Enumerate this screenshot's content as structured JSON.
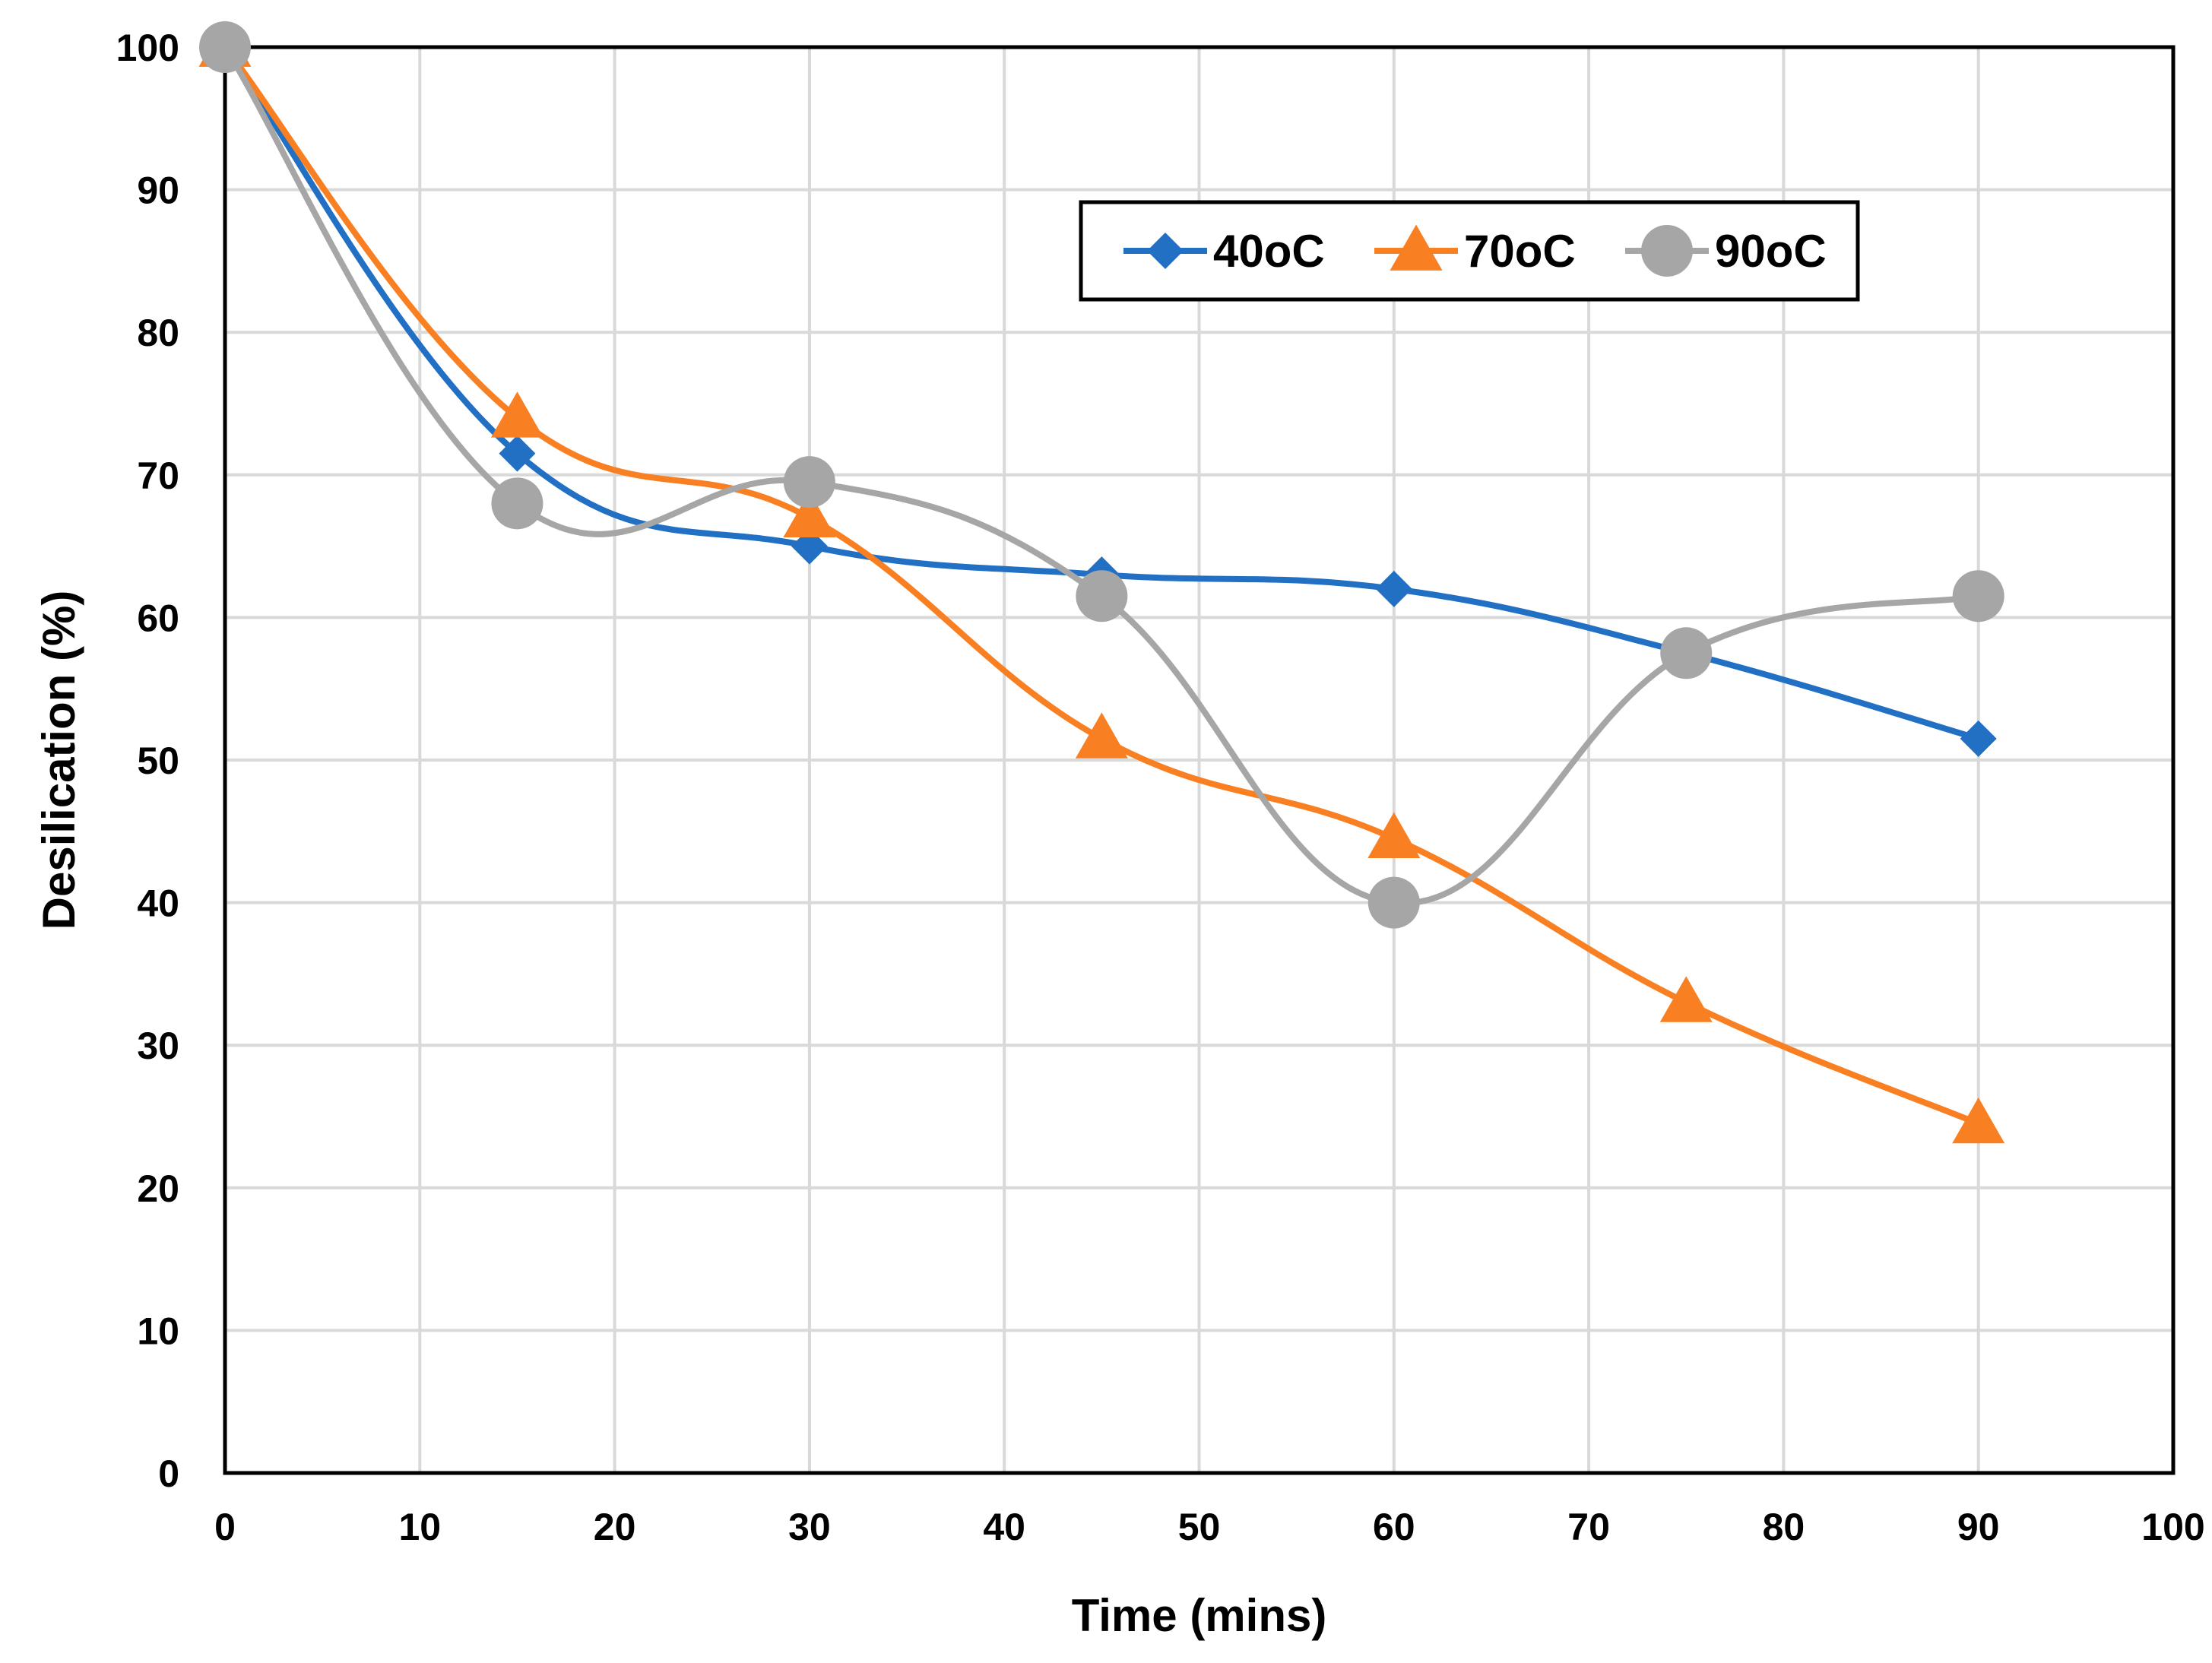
{
  "chart_data": {
    "type": "line",
    "title": "",
    "xlabel": "Time (mins)",
    "ylabel": "Desilication (%)",
    "xlim": [
      0,
      100
    ],
    "ylim": [
      0,
      100
    ],
    "xticks": [
      0,
      10,
      20,
      30,
      40,
      50,
      60,
      70,
      80,
      90,
      100
    ],
    "yticks": [
      0,
      10,
      20,
      30,
      40,
      50,
      60,
      70,
      80,
      90,
      100
    ],
    "grid": true,
    "legend_position": "top-right",
    "series": [
      {
        "name": "40oC",
        "color": "#2170C4",
        "marker": "diamond",
        "x": [
          0,
          15,
          30,
          45,
          60,
          75,
          90
        ],
        "y": [
          100,
          71.5,
          65,
          63,
          62,
          57.5,
          51.5
        ]
      },
      {
        "name": "70oC",
        "color": "#F98022",
        "marker": "triangle",
        "x": [
          0,
          15,
          30,
          45,
          60,
          75,
          90
        ],
        "y": [
          100,
          74,
          67,
          51.5,
          44.5,
          33,
          24.5
        ]
      },
      {
        "name": "90oC",
        "color": "#A6A6A6",
        "marker": "circle",
        "x": [
          0,
          15,
          30,
          45,
          60,
          75,
          90
        ],
        "y": [
          100,
          68,
          69.5,
          61.5,
          40,
          57.5,
          61.5
        ]
      }
    ]
  }
}
